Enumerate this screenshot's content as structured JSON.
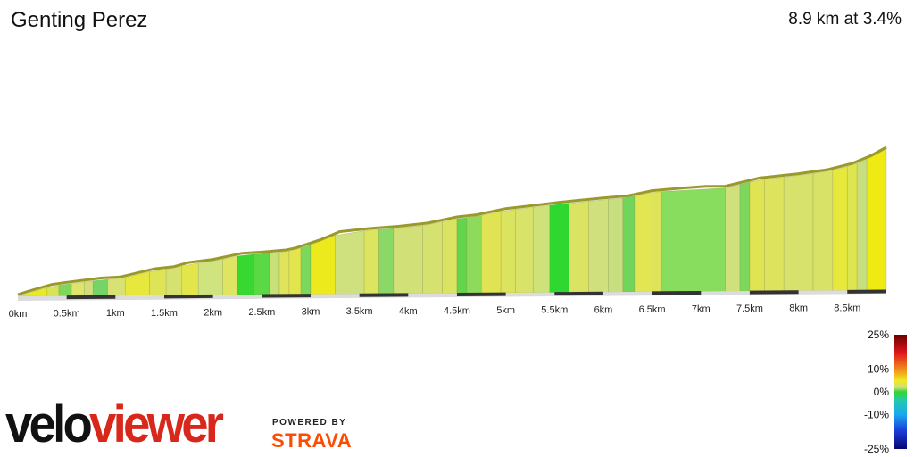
{
  "header": {
    "title": "Genting Perez",
    "summary": "8.9 km at 3.4%"
  },
  "branding": {
    "logo_part1": "velo",
    "logo_part2": "viewer",
    "powered_by": "POWERED BY",
    "strava": "STRAVA",
    "logo_color": "#d8281c",
    "strava_color": "#fc4c02"
  },
  "chart_data": {
    "type": "area",
    "x_unit": "km",
    "xlim": [
      0,
      8.9
    ],
    "x_ticks": [
      0,
      0.5,
      1,
      1.5,
      2,
      2.5,
      3,
      3.5,
      4,
      4.5,
      5,
      5.5,
      6,
      6.5,
      7,
      7.5,
      8,
      8.5
    ],
    "x_tick_labels": [
      "0km",
      "0.5km",
      "1km",
      "1.5km",
      "2km",
      "2.5km",
      "3km",
      "3.5km",
      "4km",
      "4.5km",
      "5km",
      "5.5km",
      "6km",
      "6.5km",
      "7km",
      "7.5km",
      "8km",
      "8.5km"
    ],
    "profile": [
      [
        0.0,
        0
      ],
      [
        0.1,
        3
      ],
      [
        0.35,
        10
      ],
      [
        0.5,
        12
      ],
      [
        0.85,
        16
      ],
      [
        1.05,
        17
      ],
      [
        1.4,
        25
      ],
      [
        1.6,
        27
      ],
      [
        1.75,
        31
      ],
      [
        2.0,
        34
      ],
      [
        2.3,
        40
      ],
      [
        2.5,
        41
      ],
      [
        2.75,
        43
      ],
      [
        2.85,
        45
      ],
      [
        3.1,
        53
      ],
      [
        3.3,
        61
      ],
      [
        3.6,
        64
      ],
      [
        3.9,
        66
      ],
      [
        4.2,
        69
      ],
      [
        4.5,
        75
      ],
      [
        4.7,
        77
      ],
      [
        5.0,
        83
      ],
      [
        5.2,
        85
      ],
      [
        5.55,
        89
      ],
      [
        6.0,
        93
      ],
      [
        6.25,
        95
      ],
      [
        6.5,
        100
      ],
      [
        6.75,
        102
      ],
      [
        7.05,
        104
      ],
      [
        7.25,
        104
      ],
      [
        7.6,
        112
      ],
      [
        8.0,
        116
      ],
      [
        8.3,
        120
      ],
      [
        8.55,
        126
      ],
      [
        8.75,
        134
      ],
      [
        8.9,
        142
      ]
    ],
    "gradient_segments": [
      [
        0.0,
        0.3,
        0.055,
        "#eaea1e"
      ],
      [
        0.3,
        0.42,
        0.05,
        "#d8e458"
      ],
      [
        0.42,
        0.55,
        0.02,
        "#7ed65a"
      ],
      [
        0.55,
        0.68,
        0.045,
        "#dfe46a"
      ],
      [
        0.68,
        0.77,
        0.05,
        "#d0df7a"
      ],
      [
        0.77,
        0.92,
        0.01,
        "#74d468"
      ],
      [
        0.92,
        1.1,
        0.045,
        "#d8e274"
      ],
      [
        1.1,
        1.35,
        0.06,
        "#e6e83c"
      ],
      [
        1.35,
        1.52,
        0.05,
        "#dfe456"
      ],
      [
        1.52,
        1.68,
        0.045,
        "#d6e270"
      ],
      [
        1.68,
        1.85,
        0.055,
        "#e2e64a"
      ],
      [
        1.85,
        2.1,
        0.04,
        "#cfe47e"
      ],
      [
        2.1,
        2.25,
        0.05,
        "#dde562"
      ],
      [
        2.25,
        2.42,
        0.0,
        "#38d832"
      ],
      [
        2.42,
        2.58,
        0.01,
        "#5ad846"
      ],
      [
        2.58,
        2.68,
        0.03,
        "#c8e078"
      ],
      [
        2.68,
        2.78,
        0.045,
        "#dfe45a"
      ],
      [
        2.78,
        2.9,
        0.05,
        "#e2e64c"
      ],
      [
        2.9,
        3.0,
        0.01,
        "#7ad85c"
      ],
      [
        3.0,
        3.25,
        0.065,
        "#ecea1c"
      ],
      [
        3.25,
        3.55,
        0.03,
        "#cfe07e"
      ],
      [
        3.55,
        3.7,
        0.045,
        "#dde460"
      ],
      [
        3.7,
        3.85,
        0.025,
        "#8ad866"
      ],
      [
        3.85,
        4.15,
        0.035,
        "#d2e078"
      ],
      [
        4.15,
        4.35,
        0.04,
        "#d6e270"
      ],
      [
        4.35,
        4.5,
        0.045,
        "#dbe362"
      ],
      [
        4.5,
        4.6,
        0.005,
        "#62d64a"
      ],
      [
        4.6,
        4.75,
        0.02,
        "#8edb5c"
      ],
      [
        4.75,
        4.95,
        0.05,
        "#e0e454"
      ],
      [
        4.95,
        5.1,
        0.045,
        "#dbe45e"
      ],
      [
        5.1,
        5.28,
        0.04,
        "#d8e36a"
      ],
      [
        5.28,
        5.45,
        0.035,
        "#cfe27a"
      ],
      [
        5.45,
        5.65,
        0.0,
        "#2fd830"
      ],
      [
        5.65,
        5.85,
        0.04,
        "#dbe462"
      ],
      [
        5.85,
        6.05,
        0.035,
        "#cfe07c"
      ],
      [
        6.05,
        6.2,
        0.03,
        "#c8df80"
      ],
      [
        6.2,
        6.32,
        0.01,
        "#70d55a"
      ],
      [
        6.32,
        6.5,
        0.05,
        "#e2e652"
      ],
      [
        6.5,
        6.6,
        0.045,
        "#dee45a"
      ],
      [
        6.6,
        7.25,
        0.015,
        "#88dc5e"
      ],
      [
        7.25,
        7.4,
        0.035,
        "#cfe07c"
      ],
      [
        7.4,
        7.5,
        0.02,
        "#7ed65c"
      ],
      [
        7.5,
        7.65,
        0.05,
        "#e0e452"
      ],
      [
        7.65,
        7.85,
        0.045,
        "#dde35c"
      ],
      [
        7.85,
        8.15,
        0.04,
        "#d7e26c"
      ],
      [
        8.15,
        8.35,
        0.045,
        "#d8e266"
      ],
      [
        8.35,
        8.5,
        0.055,
        "#e6e83c"
      ],
      [
        8.5,
        8.6,
        0.05,
        "#dfe550"
      ],
      [
        8.6,
        8.7,
        0.03,
        "#c8df80"
      ],
      [
        8.7,
        8.9,
        0.07,
        "#eeea12"
      ]
    ],
    "legend": {
      "labels": [
        "25%",
        "10%",
        "0%",
        "-10%",
        "-25%"
      ],
      "values": [
        25,
        10,
        0,
        -10,
        -25
      ],
      "color_stops": [
        {
          "value": 25,
          "color": "#6b0000"
        },
        {
          "value": 17,
          "color": "#e0141c"
        },
        {
          "value": 10,
          "color": "#f08a1a"
        },
        {
          "value": 5,
          "color": "#f2e81e"
        },
        {
          "value": 2,
          "color": "#cfe07a"
        },
        {
          "value": 0,
          "color": "#32d632"
        },
        {
          "value": -4,
          "color": "#22c8b4"
        },
        {
          "value": -10,
          "color": "#1aa8f0"
        },
        {
          "value": -17,
          "color": "#1a3cd8"
        },
        {
          "value": -25,
          "color": "#080870"
        }
      ]
    }
  }
}
